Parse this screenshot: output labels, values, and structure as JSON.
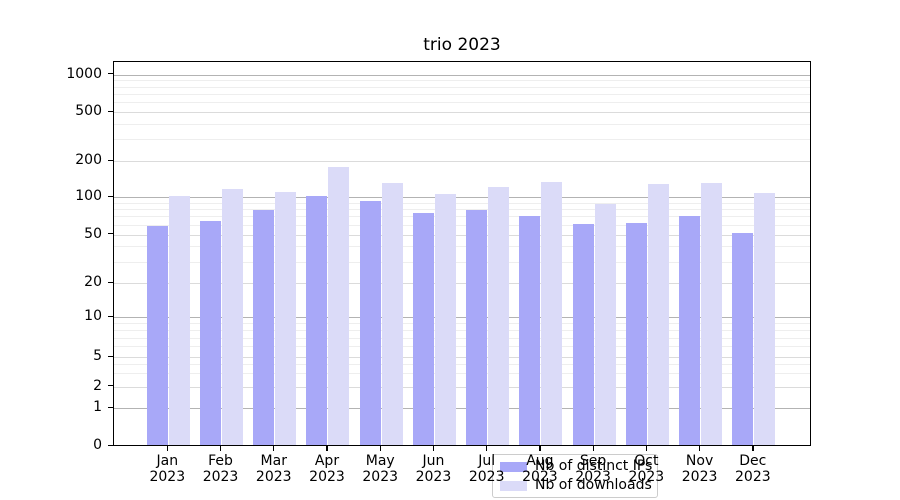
{
  "chart_data": {
    "type": "bar",
    "title": "trio 2023",
    "categories": [
      "Jan",
      "Feb",
      "Mar",
      "Apr",
      "May",
      "Jun",
      "Jul",
      "Aug",
      "Sep",
      "Oct",
      "Nov",
      "Dec"
    ],
    "year": "2023",
    "series": [
      {
        "name": "Nb of distinct IPs",
        "color": "#a8a8f8",
        "values": [
          58,
          63,
          78,
          100,
          92,
          73,
          78,
          70,
          60,
          61,
          69,
          51
        ]
      },
      {
        "name": "Nb of downloads",
        "color": "#dbdbf8",
        "values": [
          100,
          115,
          108,
          175,
          128,
          105,
          120,
          133,
          87,
          127,
          130,
          107
        ]
      }
    ],
    "y_axis": {
      "scale": "symlog",
      "ticks": [
        {
          "label": "1000",
          "value": 1000
        },
        {
          "label": "500",
          "value": 500
        },
        {
          "label": "200",
          "value": 200
        },
        {
          "label": "100",
          "value": 100
        },
        {
          "label": "50",
          "value": 50
        },
        {
          "label": "20",
          "value": 20
        },
        {
          "label": "10",
          "value": 10
        },
        {
          "label": "5",
          "value": 5
        },
        {
          "label": "2",
          "value": 2
        },
        {
          "label": "1",
          "value": 1
        },
        {
          "label": "0",
          "value": 0
        }
      ]
    },
    "grid": "on",
    "legend_position": "inside lower center"
  }
}
